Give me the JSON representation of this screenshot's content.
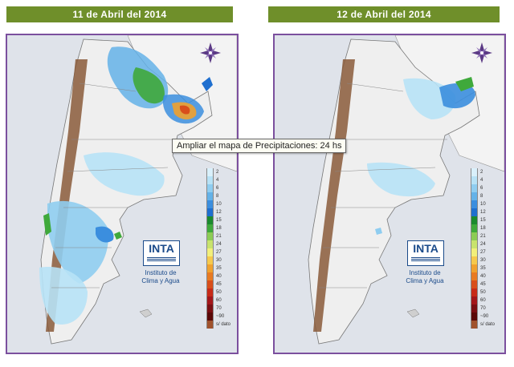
{
  "panels": [
    {
      "title": "11 de Abril del 2014"
    },
    {
      "title": "12 de Abril del 2014"
    }
  ],
  "tooltip": "Ampliar el mapa de Precipitaciones: 24 hs",
  "legend": {
    "values": [
      "2",
      "4",
      "6",
      "8",
      "10",
      "12",
      "15",
      "18",
      "21",
      "24",
      "27",
      "30",
      "35",
      "40",
      "45",
      "50",
      "60",
      "70",
      "~90",
      "s/ dato"
    ],
    "colors": [
      "#d9f0fb",
      "#b7e2f6",
      "#8fcdf0",
      "#64b2e8",
      "#3b8ede",
      "#1f6fcf",
      "#1b8a2e",
      "#3fa93b",
      "#8ccc55",
      "#c8e36d",
      "#f2ef7a",
      "#f6c94c",
      "#f0a12e",
      "#e87a22",
      "#d84e1b",
      "#c72a18",
      "#a3161a",
      "#7a0e12",
      "#5a0808",
      "#a0522d"
    ]
  },
  "logo": {
    "word": "INTA",
    "institute_line1": "Instituto de",
    "institute_line2": "Clima y Agua"
  },
  "icons": {
    "compass": "compass-rose-icon"
  }
}
